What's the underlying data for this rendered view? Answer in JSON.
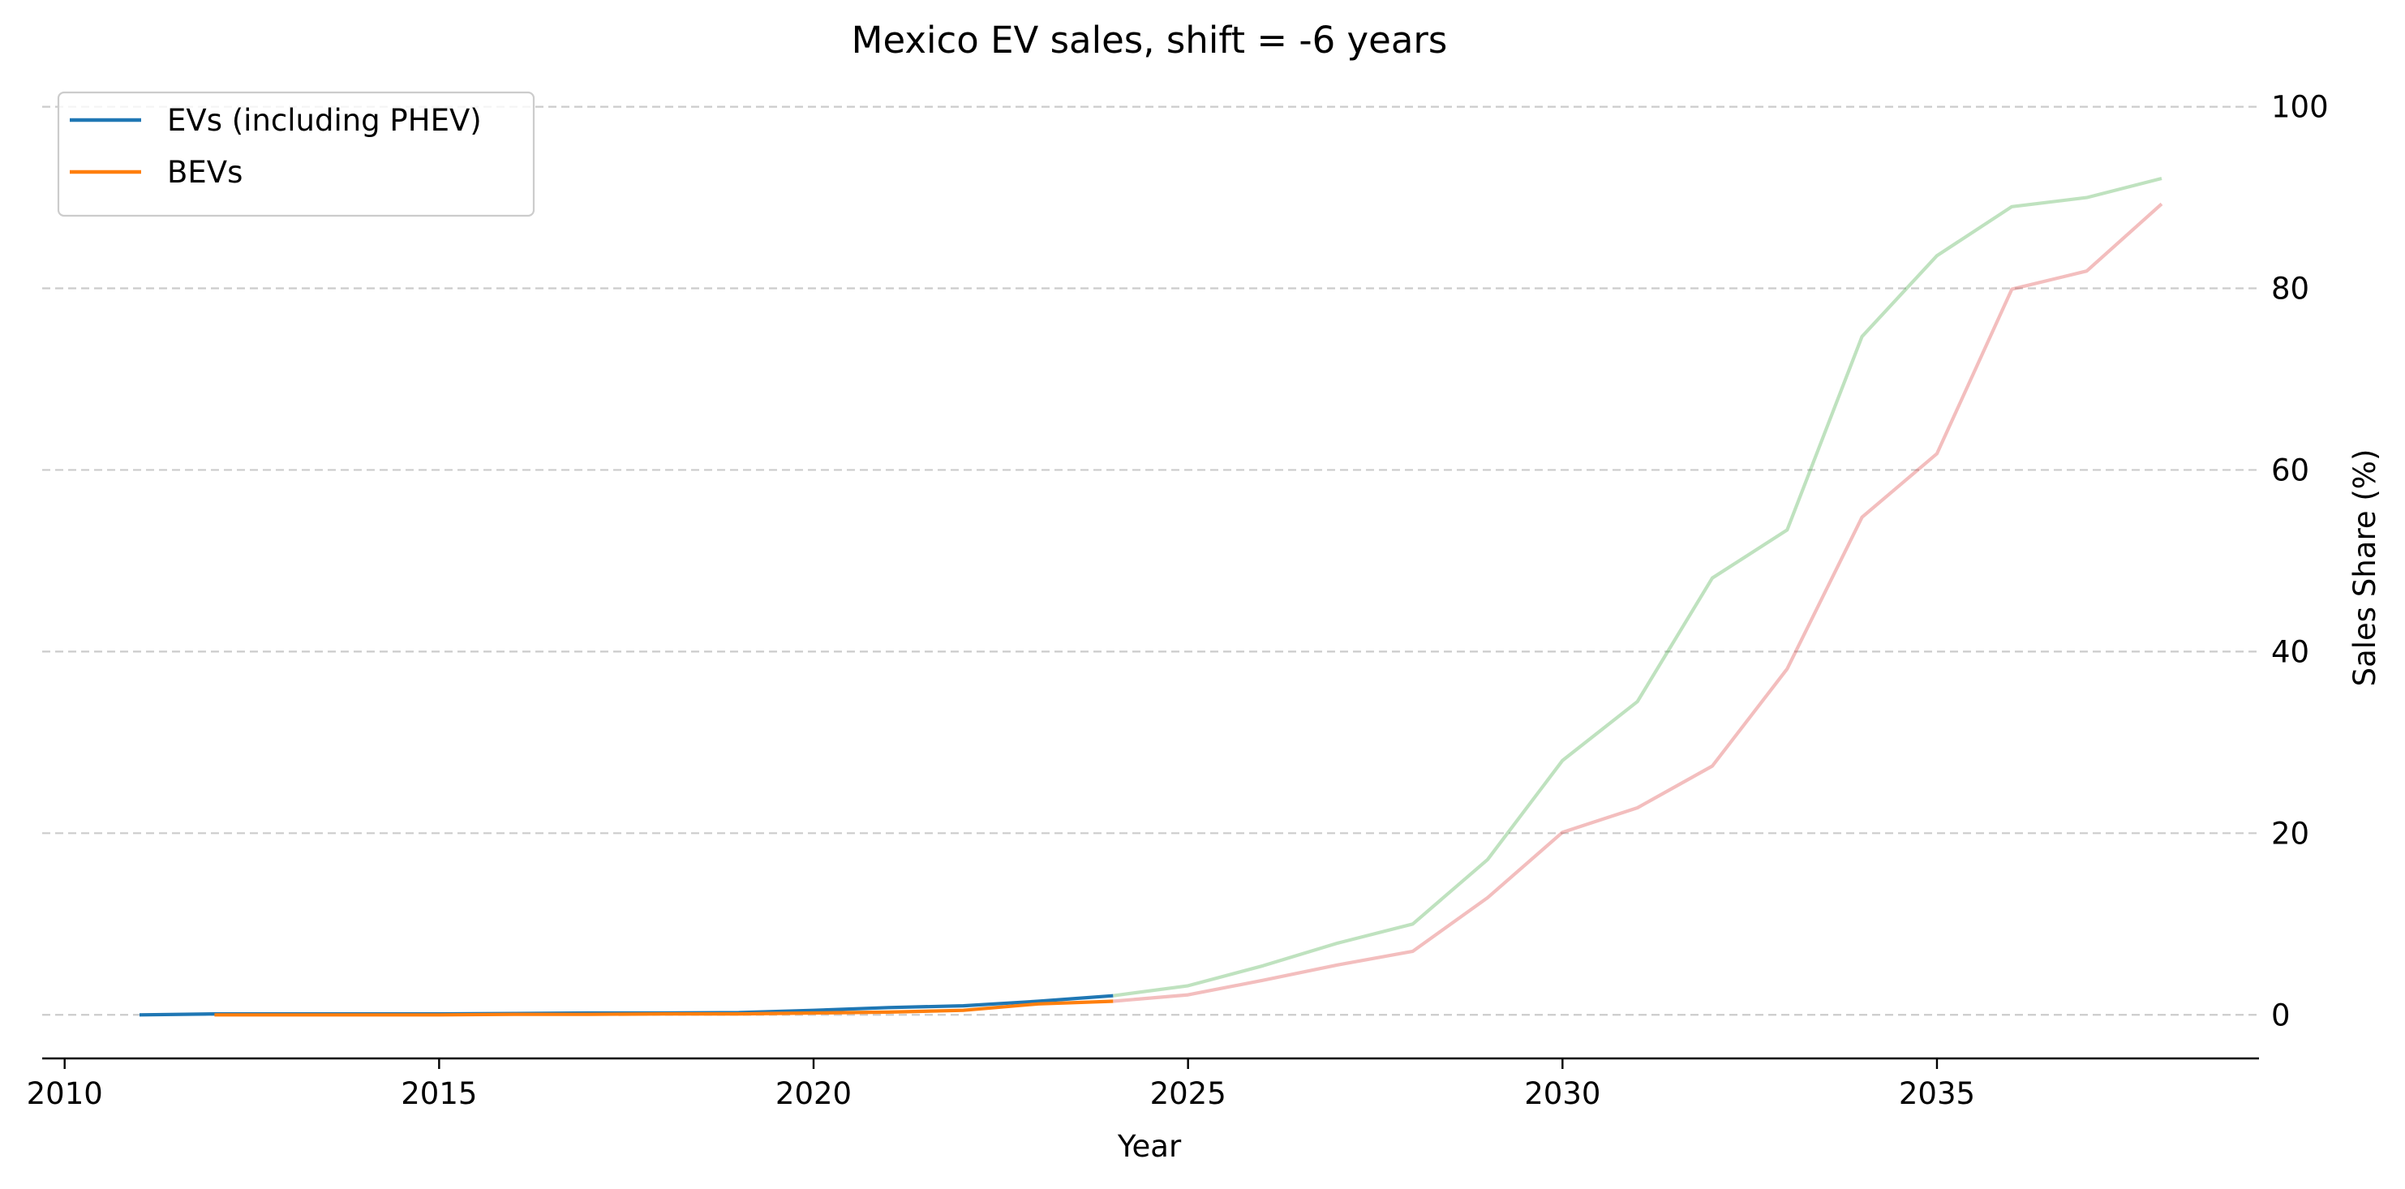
{
  "chart_data": {
    "type": "line",
    "title": "Mexico EV sales, shift = -6 years",
    "xlabel": "Year",
    "ylabel": "Sales Share (%)",
    "xlim": [
      2009.7,
      2039.3
    ],
    "ylim": [
      -4.8,
      103
    ],
    "xticks": [
      2010,
      2015,
      2020,
      2025,
      2030,
      2035
    ],
    "yticks": [
      0,
      20,
      40,
      60,
      80,
      100
    ],
    "grid": "horizontal dashed",
    "y_axis_side": "right",
    "legend_position": "top-left",
    "series": [
      {
        "name": "EVs (including PHEV)",
        "color": "#1f77b4",
        "in_legend": true,
        "x": [
          2011,
          2012,
          2013,
          2014,
          2015,
          2016,
          2017,
          2018,
          2019,
          2020,
          2021,
          2022,
          2023,
          2024
        ],
        "y": [
          0.0,
          0.1,
          0.1,
          0.1,
          0.1,
          0.15,
          0.2,
          0.2,
          0.25,
          0.5,
          0.8,
          1.0,
          1.5,
          2.1
        ]
      },
      {
        "name": "BEVs",
        "color": "#ff7f0e",
        "in_legend": true,
        "x": [
          2012,
          2013,
          2014,
          2015,
          2016,
          2017,
          2018,
          2019,
          2020,
          2021,
          2022,
          2023,
          2024
        ],
        "y": [
          0.0,
          0.0,
          0.0,
          0.0,
          0.05,
          0.05,
          0.1,
          0.1,
          0.2,
          0.3,
          0.5,
          1.2,
          1.5
        ]
      },
      {
        "name": "EVs shifted",
        "color": "#2ca02c",
        "opacity": 0.3,
        "in_legend": false,
        "x": [
          2024,
          2025,
          2026,
          2027,
          2028,
          2029,
          2030,
          2031,
          2032,
          2033,
          2034,
          2035,
          2036,
          2037,
          2038
        ],
        "y": [
          2.1,
          3.2,
          5.4,
          7.9,
          10.0,
          17.1,
          28.0,
          34.5,
          48.1,
          53.4,
          74.7,
          83.6,
          89.0,
          90.0,
          92.1
        ]
      },
      {
        "name": "BEVs shifted",
        "color": "#d62728",
        "opacity": 0.3,
        "in_legend": false,
        "x": [
          2024,
          2025,
          2026,
          2027,
          2028,
          2029,
          2030,
          2031,
          2032,
          2033,
          2034,
          2035,
          2036,
          2037,
          2038
        ],
        "y": [
          1.5,
          2.2,
          3.8,
          5.5,
          7.0,
          12.9,
          20.1,
          22.8,
          27.4,
          38.1,
          54.8,
          61.8,
          79.9,
          81.9,
          89.3
        ]
      }
    ]
  }
}
